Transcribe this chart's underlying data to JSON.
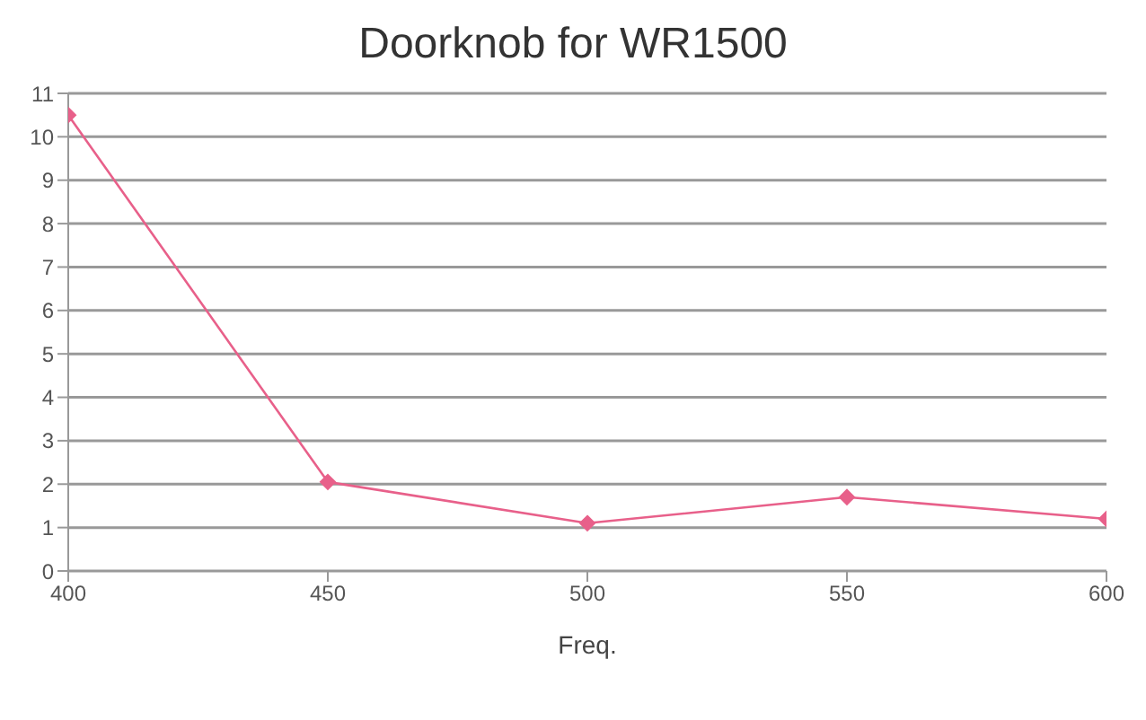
{
  "chart_data": {
    "type": "line",
    "title": "Doorknob for WR1500",
    "xlabel": "Freq.",
    "x": [
      400,
      450,
      500,
      550,
      600
    ],
    "series": [
      {
        "color": "#e8608a",
        "values": [
          10.5,
          2.05,
          1.1,
          1.7,
          1.2
        ]
      }
    ],
    "xlim": [
      400,
      600
    ],
    "xticks": [
      400,
      450,
      500,
      550,
      600
    ],
    "ylim": [
      0,
      11
    ],
    "yticks": [
      0,
      1,
      2,
      3,
      4,
      5,
      6,
      7,
      8,
      9,
      10,
      11
    ],
    "grid": "y",
    "marker": "diamond",
    "line_style": "solid",
    "legend": false
  }
}
